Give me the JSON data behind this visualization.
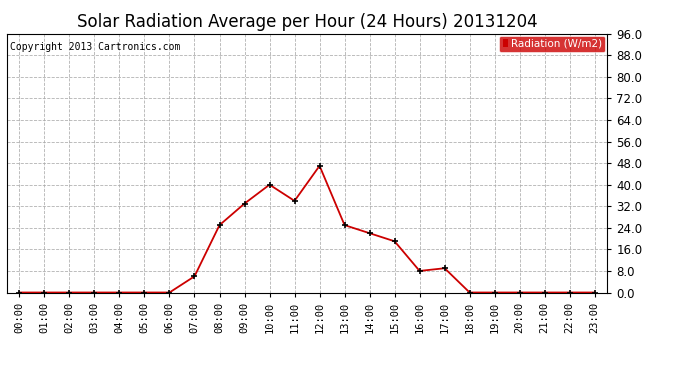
{
  "title": "Solar Radiation Average per Hour (24 Hours) 20131204",
  "copyright_text": "Copyright 2013 Cartronics.com",
  "legend_label": "Radiation (W/m2)",
  "hours": [
    0,
    1,
    2,
    3,
    4,
    5,
    6,
    7,
    8,
    9,
    10,
    11,
    12,
    13,
    14,
    15,
    16,
    17,
    18,
    19,
    20,
    21,
    22,
    23
  ],
  "hour_labels": [
    "00:00",
    "01:00",
    "02:00",
    "03:00",
    "04:00",
    "05:00",
    "06:00",
    "07:00",
    "08:00",
    "09:00",
    "10:00",
    "11:00",
    "12:00",
    "13:00",
    "14:00",
    "15:00",
    "16:00",
    "17:00",
    "18:00",
    "19:00",
    "20:00",
    "21:00",
    "22:00",
    "23:00"
  ],
  "values": [
    0,
    0,
    0,
    0,
    0,
    0,
    0,
    6,
    25,
    33,
    40,
    34,
    47,
    25,
    22,
    19,
    8,
    9,
    0,
    0,
    0,
    0,
    0,
    0
  ],
  "ylim": [
    0,
    96
  ],
  "yticks": [
    0.0,
    8.0,
    16.0,
    24.0,
    32.0,
    40.0,
    48.0,
    56.0,
    64.0,
    72.0,
    80.0,
    88.0,
    96.0
  ],
  "line_color": "#cc0000",
  "marker_color": "#000000",
  "grid_color": "#aaaaaa",
  "bg_color": "#ffffff",
  "legend_bg": "#cc0000",
  "legend_text_color": "#ffffff",
  "title_fontsize": 12,
  "copyright_fontsize": 7,
  "tick_fontsize": 7.5,
  "ytick_fontsize": 8.5
}
